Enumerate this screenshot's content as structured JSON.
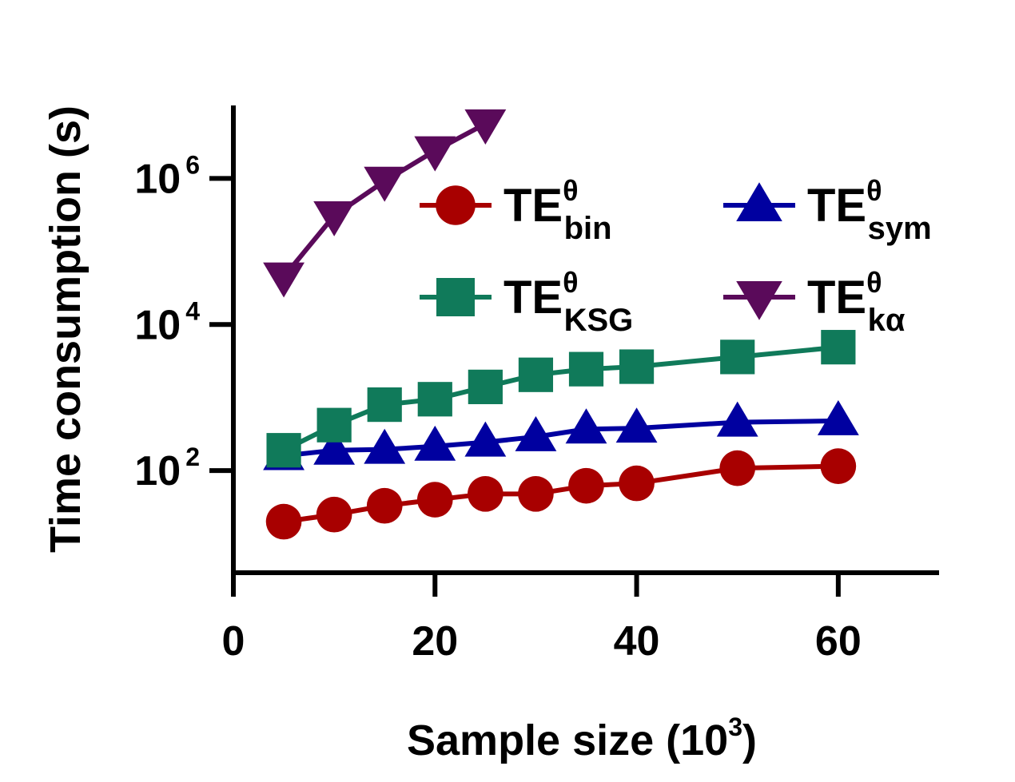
{
  "chart_data": {
    "type": "line",
    "title": "",
    "xlabel": "Sample size (10",
    "xlabel_sup": "3",
    "xlabel_end": ")",
    "ylabel": "Time consumption  (s)",
    "y_scale": "log",
    "xlim": [
      0,
      70
    ],
    "ylim": [
      4,
      10000000
    ],
    "x_ticks": [
      0,
      20,
      40,
      60
    ],
    "y_ticks": [
      {
        "value": 100,
        "base": "10",
        "exp": "2"
      },
      {
        "value": 10000,
        "base": "10",
        "exp": "4"
      },
      {
        "value": 1000000,
        "base": "10",
        "exp": "6"
      }
    ],
    "legend_position": "top-right",
    "series": [
      {
        "name": "TE",
        "sup": "θ",
        "sub": "bin",
        "color": "#a80000",
        "marker": "circle",
        "x": [
          5,
          10,
          15,
          20,
          25,
          30,
          35,
          40,
          50,
          60
        ],
        "y": [
          20,
          25,
          33,
          40,
          48,
          48,
          62,
          67,
          108,
          115
        ]
      },
      {
        "name": "TE",
        "sup": "θ",
        "sub": "sym",
        "color": "#0000a0",
        "marker": "triangle-up",
        "x": [
          5,
          10,
          15,
          20,
          25,
          30,
          35,
          40,
          50,
          60
        ],
        "y": [
          160,
          190,
          195,
          215,
          245,
          290,
          370,
          380,
          460,
          480
        ]
      },
      {
        "name": "TE",
        "sup": "θ",
        "sub": "KSG",
        "color": "#107a5a",
        "marker": "square",
        "x": [
          5,
          10,
          15,
          20,
          25,
          30,
          35,
          40,
          50,
          60
        ],
        "y": [
          190,
          420,
          800,
          950,
          1400,
          2050,
          2450,
          2650,
          3600,
          4900
        ]
      },
      {
        "name": "TE",
        "sup": "θ",
        "sub": "kα",
        "color": "#5a0a5a",
        "marker": "triangle-down",
        "x": [
          5,
          10,
          15,
          20,
          25
        ],
        "y": [
          45000,
          310000,
          920000,
          2400000,
          5600000
        ]
      }
    ]
  }
}
